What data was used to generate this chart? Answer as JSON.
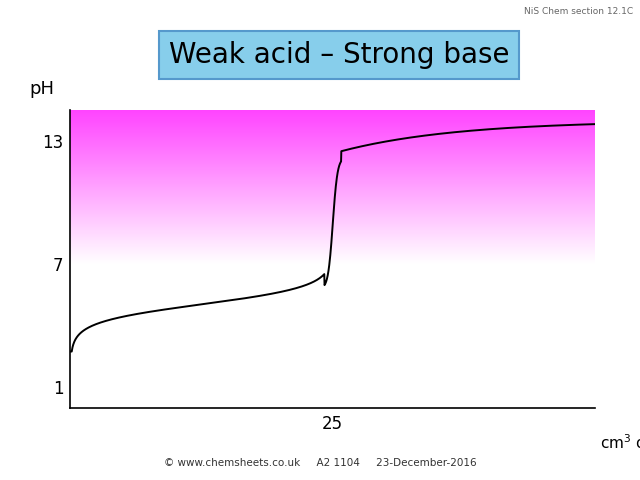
{
  "title": "Weak acid – Strong base",
  "title_bg": "#87CEEB",
  "title_edgecolor": "#5599CC",
  "title_fontsize": 20,
  "ylabel": "pH",
  "yticks": [
    1,
    7,
    13
  ],
  "xtick_25": 25,
  "ylim": [
    0,
    14.5
  ],
  "xlim": [
    0,
    50
  ],
  "curve_color": "#000000",
  "bg_color": "#ffffff",
  "pink_color": "#FF44FF",
  "pink_top_y": 14.5,
  "pink_bottom_y": 7.0,
  "footnote": "© www.chemsheets.co.uk     A2 1104     23-December-2016",
  "top_right_text": "NiS Chem section 12.1C",
  "equivalence_x": 25,
  "curve_linewidth": 1.4
}
